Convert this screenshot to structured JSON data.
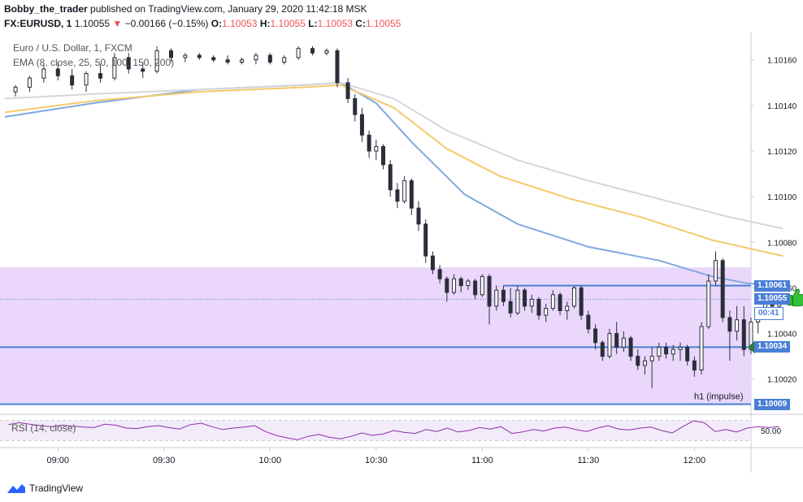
{
  "header": {
    "author": "Bobby_the_trader",
    "published_text": "published on TradingView.com, January 29, 2020 11:42:18 MSK",
    "symbol": "FX:EURUSD, 1",
    "last": "1.10055",
    "change_arrow": "▼",
    "change": "−0.00166 (−0.15%)",
    "o_label": "O:",
    "o_value": "1.10053",
    "h_label": "H:",
    "h_value": "1.10055",
    "l_label": "L:",
    "l_value": "1.10053",
    "c_label": "C:",
    "c_value": "1.10055"
  },
  "legend": {
    "title": "Euro / U.S. Dollar, 1, FXCM",
    "ema": "EMA (8, close, 25, 50, 100, 150, 200)",
    "rsi": "RSI (14, close)"
  },
  "annotations": {
    "zone_label": "h1 (impulse)"
  },
  "price_tags": {
    "resistance": "1.10061",
    "last": "1.10055",
    "countdown": "00:41",
    "support": "1.10034",
    "zone_bottom": "1.10009"
  },
  "footer": {
    "brand": "TradingView"
  },
  "colors": {
    "zone": "#ead7fb",
    "horizontal_line": "#4a7fd6",
    "ema_blue": "#7fa9e0",
    "ema_orange": "#f5c96b",
    "ema_gray": "#d6d6d6",
    "candle": "#2a2e39",
    "rsi_line": "#8e2fa6",
    "thumbs_icon": "#35c13a",
    "arrow_icon": "#2f7a3b"
  },
  "chart_data": {
    "type": "candlestick",
    "symbol": "EURUSD",
    "timeframe": "1 minute",
    "x_ticks": [
      "09:00",
      "09:30",
      "10:00",
      "10:30",
      "11:00",
      "11:30",
      "12:00"
    ],
    "y_ticks": [
      "1.10020",
      "1.10040",
      "1.10060",
      "1.10080",
      "1.10100",
      "1.10120",
      "1.10140",
      "1.10160"
    ],
    "ylim": [
      1.10006,
      1.10172
    ],
    "time_range_minutes": [
      -15,
      196
    ],
    "candles": [
      {
        "t": -12,
        "o": 1.10146,
        "h": 1.10149,
        "l": 1.10144,
        "c": 1.10148
      },
      {
        "t": -8,
        "o": 1.10148,
        "h": 1.10153,
        "l": 1.10146,
        "c": 1.10152
      },
      {
        "t": -4,
        "o": 1.10152,
        "h": 1.10158,
        "l": 1.1015,
        "c": 1.10156
      },
      {
        "t": 0,
        "o": 1.10156,
        "h": 1.10159,
        "l": 1.10151,
        "c": 1.10153
      },
      {
        "t": 4,
        "o": 1.10153,
        "h": 1.10156,
        "l": 1.10147,
        "c": 1.10149
      },
      {
        "t": 8,
        "o": 1.10149,
        "h": 1.10155,
        "l": 1.10146,
        "c": 1.10154
      },
      {
        "t": 12,
        "o": 1.10154,
        "h": 1.10158,
        "l": 1.1015,
        "c": 1.10152
      },
      {
        "t": 16,
        "o": 1.10152,
        "h": 1.10163,
        "l": 1.10151,
        "c": 1.10161
      },
      {
        "t": 20,
        "o": 1.10161,
        "h": 1.10163,
        "l": 1.10154,
        "c": 1.10156
      },
      {
        "t": 24,
        "o": 1.10156,
        "h": 1.10159,
        "l": 1.10152,
        "c": 1.10155
      },
      {
        "t": 28,
        "o": 1.10155,
        "h": 1.10166,
        "l": 1.10154,
        "c": 1.10164
      },
      {
        "t": 32,
        "o": 1.10164,
        "h": 1.10165,
        "l": 1.10159,
        "c": 1.10161
      },
      {
        "t": 36,
        "o": 1.10161,
        "h": 1.10163,
        "l": 1.10159,
        "c": 1.10162
      },
      {
        "t": 40,
        "o": 1.10162,
        "h": 1.10163,
        "l": 1.1016,
        "c": 1.10161
      },
      {
        "t": 44,
        "o": 1.10161,
        "h": 1.10162,
        "l": 1.10159,
        "c": 1.1016
      },
      {
        "t": 48,
        "o": 1.1016,
        "h": 1.10162,
        "l": 1.10158,
        "c": 1.10159
      },
      {
        "t": 52,
        "o": 1.10159,
        "h": 1.10161,
        "l": 1.10158,
        "c": 1.1016
      },
      {
        "t": 56,
        "o": 1.1016,
        "h": 1.10163,
        "l": 1.10158,
        "c": 1.10162
      },
      {
        "t": 60,
        "o": 1.10162,
        "h": 1.10163,
        "l": 1.10158,
        "c": 1.10159
      },
      {
        "t": 64,
        "o": 1.10159,
        "h": 1.10162,
        "l": 1.10158,
        "c": 1.10161
      },
      {
        "t": 68,
        "o": 1.10161,
        "h": 1.10166,
        "l": 1.1016,
        "c": 1.10165
      },
      {
        "t": 72,
        "o": 1.10165,
        "h": 1.10166,
        "l": 1.10162,
        "c": 1.10163
      },
      {
        "t": 76,
        "o": 1.10163,
        "h": 1.10165,
        "l": 1.10162,
        "c": 1.10164
      },
      {
        "t": 79,
        "o": 1.10164,
        "h": 1.10165,
        "l": 1.10148,
        "c": 1.1015
      },
      {
        "t": 82,
        "o": 1.1015,
        "h": 1.10152,
        "l": 1.10141,
        "c": 1.10143
      },
      {
        "t": 84,
        "o": 1.10143,
        "h": 1.10145,
        "l": 1.10133,
        "c": 1.10136
      },
      {
        "t": 86,
        "o": 1.10136,
        "h": 1.10139,
        "l": 1.10124,
        "c": 1.10127
      },
      {
        "t": 88,
        "o": 1.10127,
        "h": 1.10129,
        "l": 1.10117,
        "c": 1.1012
      },
      {
        "t": 90,
        "o": 1.1012,
        "h": 1.10125,
        "l": 1.10116,
        "c": 1.10122
      },
      {
        "t": 92,
        "o": 1.10122,
        "h": 1.10123,
        "l": 1.10112,
        "c": 1.10114
      },
      {
        "t": 94,
        "o": 1.10114,
        "h": 1.10116,
        "l": 1.101,
        "c": 1.10103
      },
      {
        "t": 96,
        "o": 1.10103,
        "h": 1.10106,
        "l": 1.10095,
        "c": 1.10098
      },
      {
        "t": 98,
        "o": 1.10098,
        "h": 1.10109,
        "l": 1.10097,
        "c": 1.10107
      },
      {
        "t": 100,
        "o": 1.10107,
        "h": 1.10108,
        "l": 1.10092,
        "c": 1.10095
      },
      {
        "t": 102,
        "o": 1.10095,
        "h": 1.10098,
        "l": 1.10085,
        "c": 1.10088
      },
      {
        "t": 104,
        "o": 1.10088,
        "h": 1.1009,
        "l": 1.10071,
        "c": 1.10074
      },
      {
        "t": 106,
        "o": 1.10074,
        "h": 1.10076,
        "l": 1.10066,
        "c": 1.10068
      },
      {
        "t": 108,
        "o": 1.10068,
        "h": 1.1007,
        "l": 1.10062,
        "c": 1.10064
      },
      {
        "t": 110,
        "o": 1.10064,
        "h": 1.10065,
        "l": 1.10054,
        "c": 1.10058
      },
      {
        "t": 112,
        "o": 1.10058,
        "h": 1.10066,
        "l": 1.10057,
        "c": 1.10064
      },
      {
        "t": 114,
        "o": 1.10064,
        "h": 1.10065,
        "l": 1.10058,
        "c": 1.10061
      },
      {
        "t": 116,
        "o": 1.10061,
        "h": 1.10064,
        "l": 1.10059,
        "c": 1.10063
      },
      {
        "t": 118,
        "o": 1.10063,
        "h": 1.10064,
        "l": 1.10055,
        "c": 1.10057
      },
      {
        "t": 120,
        "o": 1.10057,
        "h": 1.10066,
        "l": 1.10056,
        "c": 1.10065
      },
      {
        "t": 122,
        "o": 1.10065,
        "h": 1.10066,
        "l": 1.10044,
        "c": 1.10052
      },
      {
        "t": 124,
        "o": 1.10052,
        "h": 1.10061,
        "l": 1.1005,
        "c": 1.10059
      },
      {
        "t": 126,
        "o": 1.10059,
        "h": 1.10061,
        "l": 1.10052,
        "c": 1.10054
      },
      {
        "t": 128,
        "o": 1.10054,
        "h": 1.1006,
        "l": 1.10047,
        "c": 1.10049
      },
      {
        "t": 130,
        "o": 1.10049,
        "h": 1.10061,
        "l": 1.10048,
        "c": 1.10059
      },
      {
        "t": 132,
        "o": 1.10059,
        "h": 1.1006,
        "l": 1.1005,
        "c": 1.10052
      },
      {
        "t": 134,
        "o": 1.10052,
        "h": 1.10057,
        "l": 1.10049,
        "c": 1.10055
      },
      {
        "t": 136,
        "o": 1.10055,
        "h": 1.10056,
        "l": 1.10046,
        "c": 1.10048
      },
      {
        "t": 138,
        "o": 1.10048,
        "h": 1.10053,
        "l": 1.10045,
        "c": 1.10051
      },
      {
        "t": 140,
        "o": 1.10051,
        "h": 1.10059,
        "l": 1.1005,
        "c": 1.10057
      },
      {
        "t": 142,
        "o": 1.10057,
        "h": 1.10058,
        "l": 1.10048,
        "c": 1.1005
      },
      {
        "t": 144,
        "o": 1.1005,
        "h": 1.10054,
        "l": 1.10046,
        "c": 1.10052
      },
      {
        "t": 146,
        "o": 1.10052,
        "h": 1.10061,
        "l": 1.10051,
        "c": 1.1006
      },
      {
        "t": 148,
        "o": 1.1006,
        "h": 1.10061,
        "l": 1.10046,
        "c": 1.10048
      },
      {
        "t": 150,
        "o": 1.10048,
        "h": 1.1005,
        "l": 1.1004,
        "c": 1.10042
      },
      {
        "t": 152,
        "o": 1.10042,
        "h": 1.10044,
        "l": 1.10033,
        "c": 1.10036
      },
      {
        "t": 154,
        "o": 1.10036,
        "h": 1.10037,
        "l": 1.10028,
        "c": 1.1003
      },
      {
        "t": 156,
        "o": 1.1003,
        "h": 1.10042,
        "l": 1.10029,
        "c": 1.1004
      },
      {
        "t": 158,
        "o": 1.1004,
        "h": 1.10045,
        "l": 1.10031,
        "c": 1.10034
      },
      {
        "t": 160,
        "o": 1.10034,
        "h": 1.10041,
        "l": 1.10032,
        "c": 1.10038
      },
      {
        "t": 162,
        "o": 1.10038,
        "h": 1.10039,
        "l": 1.10028,
        "c": 1.1003
      },
      {
        "t": 164,
        "o": 1.1003,
        "h": 1.10033,
        "l": 1.10024,
        "c": 1.10026
      },
      {
        "t": 166,
        "o": 1.10026,
        "h": 1.1003,
        "l": 1.10022,
        "c": 1.10028
      },
      {
        "t": 168,
        "o": 1.10028,
        "h": 1.10034,
        "l": 1.10016,
        "c": 1.1003
      },
      {
        "t": 170,
        "o": 1.1003,
        "h": 1.10036,
        "l": 1.10028,
        "c": 1.10034
      },
      {
        "t": 172,
        "o": 1.10034,
        "h": 1.10036,
        "l": 1.10029,
        "c": 1.10031
      },
      {
        "t": 174,
        "o": 1.10031,
        "h": 1.10035,
        "l": 1.10028,
        "c": 1.10033
      },
      {
        "t": 176,
        "o": 1.10033,
        "h": 1.10036,
        "l": 1.10028,
        "c": 1.10034
      },
      {
        "t": 178,
        "o": 1.10034,
        "h": 1.10035,
        "l": 1.10026,
        "c": 1.10028
      },
      {
        "t": 180,
        "o": 1.10028,
        "h": 1.1003,
        "l": 1.10021,
        "c": 1.10024
      },
      {
        "t": 182,
        "o": 1.10024,
        "h": 1.10045,
        "l": 1.10022,
        "c": 1.10043
      },
      {
        "t": 184,
        "o": 1.10043,
        "h": 1.10066,
        "l": 1.10042,
        "c": 1.10063
      },
      {
        "t": 186,
        "o": 1.10063,
        "h": 1.10076,
        "l": 1.10061,
        "c": 1.10072
      },
      {
        "t": 188,
        "o": 1.10072,
        "h": 1.10073,
        "l": 1.10045,
        "c": 1.10047
      },
      {
        "t": 190,
        "o": 1.10047,
        "h": 1.1005,
        "l": 1.10028,
        "c": 1.10041
      },
      {
        "t": 192,
        "o": 1.10041,
        "h": 1.10052,
        "l": 1.10037,
        "c": 1.10046
      },
      {
        "t": 194,
        "o": 1.10046,
        "h": 1.10052,
        "l": 1.1003,
        "c": 1.10033
      },
      {
        "t": 196,
        "o": 1.10033,
        "h": 1.10047,
        "l": 1.10031,
        "c": 1.10045
      },
      {
        "t": 198,
        "o": 1.10045,
        "h": 1.10049,
        "l": 1.1004,
        "c": 1.10047
      },
      {
        "t": 200,
        "o": 1.10047,
        "h": 1.10056,
        "l": 1.10046,
        "c": 1.10054
      },
      {
        "t": 202,
        "o": 1.10054,
        "h": 1.10056,
        "l": 1.1005,
        "c": 1.10052
      },
      {
        "t": 204,
        "o": 1.10052,
        "h": 1.10055,
        "l": 1.10051,
        "c": 1.10055
      }
    ],
    "ema_series": [
      {
        "name": "EMA 100",
        "color": "#7fa9e0",
        "points": [
          [
            -15,
            1.10135
          ],
          [
            10,
            1.10141
          ],
          [
            40,
            1.10147
          ],
          [
            70,
            1.10149
          ],
          [
            80,
            1.1015
          ],
          [
            90,
            1.10141
          ],
          [
            100,
            1.10124
          ],
          [
            115,
            1.10101
          ],
          [
            130,
            1.10088
          ],
          [
            150,
            1.10078
          ],
          [
            170,
            1.10072
          ],
          [
            185,
            1.10065
          ],
          [
            195,
            1.10062
          ],
          [
            205,
            1.10061
          ]
        ]
      },
      {
        "name": "EMA 150",
        "color": "#f5c96b",
        "points": [
          [
            -15,
            1.10137
          ],
          [
            10,
            1.10142
          ],
          [
            40,
            1.10146
          ],
          [
            70,
            1.10148
          ],
          [
            80,
            1.10149
          ],
          [
            95,
            1.10139
          ],
          [
            110,
            1.10121
          ],
          [
            125,
            1.10109
          ],
          [
            145,
            1.10099
          ],
          [
            165,
            1.10091
          ],
          [
            185,
            1.10081
          ],
          [
            205,
            1.10074
          ]
        ]
      },
      {
        "name": "EMA 200",
        "color": "#d6d6d6",
        "points": [
          [
            -15,
            1.10143
          ],
          [
            10,
            1.10145
          ],
          [
            40,
            1.10147
          ],
          [
            70,
            1.10149
          ],
          [
            80,
            1.1015
          ],
          [
            95,
            1.10143
          ],
          [
            110,
            1.10129
          ],
          [
            130,
            1.10116
          ],
          [
            150,
            1.10107
          ],
          [
            170,
            1.10099
          ],
          [
            190,
            1.10091
          ],
          [
            205,
            1.10086
          ]
        ]
      }
    ],
    "horizontal_levels": [
      1.10061,
      1.10034,
      1.10009
    ],
    "zone": {
      "label": "h1 (impulse)",
      "y_low": 1.10009,
      "y_high": 1.10069
    },
    "rsi": {
      "period": 14,
      "y_ticks": [
        "50.00"
      ],
      "bands": [
        70,
        30
      ],
      "values": [
        62,
        66,
        63,
        60,
        58,
        61,
        59,
        57,
        56,
        63,
        61,
        55,
        54,
        58,
        60,
        56,
        53,
        62,
        65,
        58,
        52,
        55,
        57,
        60,
        48,
        40,
        35,
        31,
        38,
        42,
        36,
        33,
        38,
        45,
        40,
        43,
        50,
        46,
        44,
        52,
        48,
        55,
        47,
        50,
        56,
        53,
        58,
        44,
        47,
        52,
        49,
        55,
        57,
        52,
        48,
        55,
        60,
        53,
        51,
        55,
        57,
        50,
        45,
        58,
        70,
        66,
        48,
        52,
        47,
        55,
        58,
        56,
        58
      ]
    }
  }
}
